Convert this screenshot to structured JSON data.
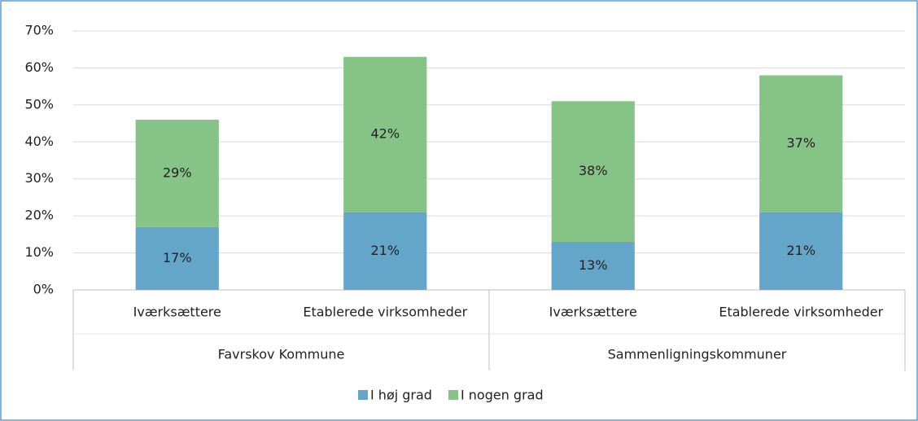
{
  "chart_data": {
    "type": "stacked_bar",
    "groups": [
      {
        "label": "Favrskov Kommune",
        "categories": [
          "Iværksættere",
          "Etablerede virksomheder"
        ]
      },
      {
        "label": "Sammenligningskommuner",
        "categories": [
          "Iværksættere",
          "Etablerede virksomheder"
        ]
      }
    ],
    "series": [
      {
        "name": "I høj grad",
        "color": "#63a6ca",
        "values": [
          17,
          21,
          13,
          21
        ],
        "value_labels": [
          "17%",
          "21%",
          "13%",
          "21%"
        ]
      },
      {
        "name": "I nogen grad",
        "color": "#86c386",
        "values": [
          29,
          42,
          38,
          37
        ],
        "value_labels": [
          "29%",
          "42%",
          "38%",
          "37%"
        ]
      }
    ],
    "ylim": [
      0,
      70
    ],
    "yticks": [
      {
        "value": 0,
        "label": "0%"
      },
      {
        "value": 10,
        "label": "10%"
      },
      {
        "value": 20,
        "label": "20%"
      },
      {
        "value": 30,
        "label": "30%"
      },
      {
        "value": 40,
        "label": "40%"
      },
      {
        "value": 50,
        "label": "50%"
      },
      {
        "value": 60,
        "label": "60%"
      },
      {
        "value": 70,
        "label": "70%"
      }
    ],
    "grid": true,
    "legend": "bottom"
  }
}
